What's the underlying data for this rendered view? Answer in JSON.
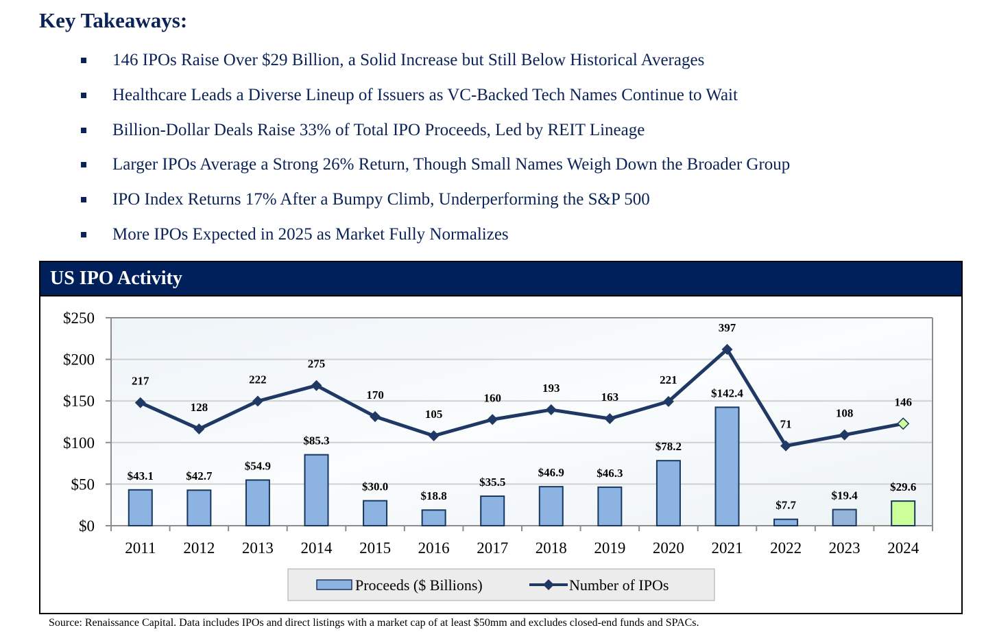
{
  "title": "Key Takeaways:",
  "bullets": [
    "146 IPOs Raise Over $29 Billion, a Solid Increase but Still Below Historical Averages",
    "Healthcare Leads a Diverse Lineup of Issuers as VC-Backed Tech Names Continue to Wait",
    "Billion-Dollar Deals Raise 33% of Total IPO Proceeds, Led by REIT Lineage",
    "Larger IPOs Average a Strong 26% Return, Though Small Names Weigh Down the Broader Group",
    "IPO Index Returns 17% After a Bumpy Climb, Underperforming the S&P 500",
    "More IPOs Expected in 2025 as Market Fully Normalizes"
  ],
  "panel_title": "US IPO Activity",
  "source": "Source: Renaissance Capital. Data includes IPOs and direct listings with a market cap of at least $50mm and excludes closed-end funds and SPACs.",
  "chart_data": {
    "type": "bar+line",
    "categories": [
      "2011",
      "2012",
      "2013",
      "2014",
      "2015",
      "2016",
      "2017",
      "2018",
      "2019",
      "2020",
      "2021",
      "2022",
      "2023",
      "2024"
    ],
    "series": [
      {
        "name": "Proceeds ($ Billions)",
        "type": "bar",
        "values": [
          43.1,
          42.7,
          54.9,
          85.3,
          30.0,
          18.8,
          35.5,
          46.9,
          46.3,
          78.2,
          142.4,
          7.7,
          19.4,
          29.6
        ],
        "labels": [
          "$43.1",
          "$42.7",
          "$54.9",
          "$85.3",
          "$30.0",
          "$18.8",
          "$35.5",
          "$46.9",
          "$46.3",
          "$78.2",
          "$142.4",
          "$7.7",
          "$19.4",
          "$29.6"
        ]
      },
      {
        "name": "Number of IPOs",
        "type": "line",
        "axis": "secondary",
        "values": [
          217,
          128,
          222,
          275,
          170,
          105,
          160,
          193,
          163,
          221,
          397,
          71,
          108,
          146
        ]
      }
    ],
    "ylim": [
      0,
      250
    ],
    "yticks": [
      "$0",
      "$50",
      "$100",
      "$150",
      "$200",
      "$250"
    ],
    "yticks_values": [
      0,
      50,
      100,
      150,
      200,
      250
    ],
    "secondary_ylim_hidden": [
      -199,
      504
    ],
    "grid": true,
    "legend": "bottom-center",
    "colors": {
      "bar": "#8db3e2",
      "bar_2023": "#95b3d7",
      "bar_highlight": "#ccff99",
      "line": "#1f3864",
      "border": "#17375e"
    }
  }
}
